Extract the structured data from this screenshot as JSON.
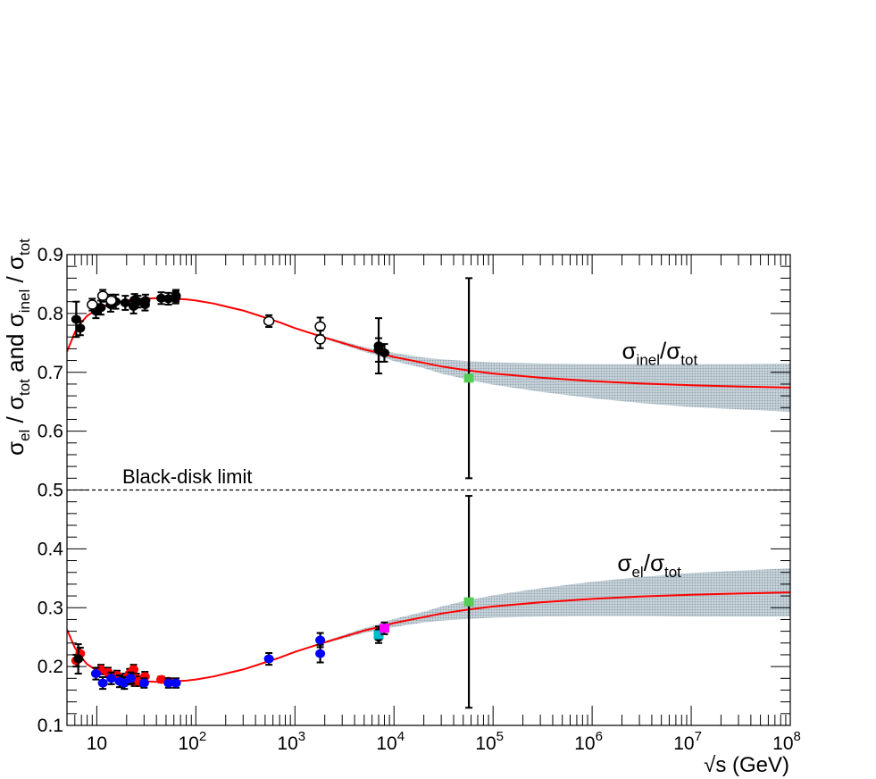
{
  "chart_data": {
    "type": "scatter",
    "title": "",
    "xlabel": {
      "root": "√s",
      "rest": " (GeV)"
    },
    "ylabel": {
      "p1": "σ",
      "p1sub": "el",
      "p2": " / ",
      "p3": "σ",
      "p3sub": "tot",
      "p4": "  and  ",
      "p5": "σ",
      "p5sub": "inel",
      "p6": " / ",
      "p7": "σ",
      "p7sub": "tot"
    },
    "x_scale": "log",
    "xlim": [
      5,
      100000000
    ],
    "ylim": [
      0.1,
      0.9
    ],
    "x_ticks": [
      {
        "value": 10,
        "base": "10",
        "exp": ""
      },
      {
        "value": 100,
        "base": "10",
        "exp": "2"
      },
      {
        "value": 1000,
        "base": "10",
        "exp": "3"
      },
      {
        "value": 10000,
        "base": "10",
        "exp": "4"
      },
      {
        "value": 100000,
        "base": "10",
        "exp": "5"
      },
      {
        "value": 1000000,
        "base": "10",
        "exp": "6"
      },
      {
        "value": 10000000,
        "base": "10",
        "exp": "7"
      },
      {
        "value": 100000000,
        "base": "10",
        "exp": "8"
      }
    ],
    "y_ticks": [
      {
        "value": 0.1,
        "label": "0.1"
      },
      {
        "value": 0.2,
        "label": "0.2"
      },
      {
        "value": 0.3,
        "label": "0.3"
      },
      {
        "value": 0.4,
        "label": "0.4"
      },
      {
        "value": 0.5,
        "label": "0.5"
      },
      {
        "value": 0.6,
        "label": "0.6"
      },
      {
        "value": 0.7,
        "label": "0.7"
      },
      {
        "value": 0.8,
        "label": "0.8"
      },
      {
        "value": 0.9,
        "label": "0.9"
      }
    ],
    "grid": false,
    "colors": {
      "fit": "#ff0000",
      "band": "#a9b9c3",
      "limit": "#000000",
      "green": "#55cc55",
      "magenta": "#ff00ff",
      "cyan": "#00bbcc",
      "blue": "#0000ff",
      "red": "#ff0000",
      "black": "#000000"
    },
    "reference_line": {
      "y": 0.5,
      "label": "Black-disk limit"
    },
    "annotations": [
      {
        "id": "inel",
        "base": "σ",
        "sub": "inel",
        "slash": "/",
        "base2": "σ",
        "sub2": "tot",
        "x": 2000000,
        "y": 0.735
      },
      {
        "id": "el",
        "base": "σ",
        "sub": "el",
        "slash": "/",
        "base2": "σ",
        "sub2": "tot",
        "x": 1800000,
        "y": 0.375
      }
    ],
    "series": [
      {
        "id": "inel_fit",
        "kind": "fit",
        "x": [
          5,
          6,
          7,
          8,
          10,
          13,
          16,
          20,
          25,
          30,
          40,
          50,
          60,
          80,
          100,
          150,
          200,
          300,
          500,
          700,
          1000,
          2000,
          3000,
          5000,
          7000,
          10000,
          20000,
          30000,
          57000,
          100000,
          300000,
          1000000,
          3000000,
          10000000,
          30000000,
          100000000
        ],
        "y": [
          0.735,
          0.768,
          0.785,
          0.796,
          0.807,
          0.815,
          0.819,
          0.822,
          0.824,
          0.825,
          0.826,
          0.826,
          0.825,
          0.824,
          0.822,
          0.817,
          0.812,
          0.805,
          0.793,
          0.785,
          0.775,
          0.759,
          0.75,
          0.739,
          0.733,
          0.726,
          0.716,
          0.71,
          0.703,
          0.698,
          0.691,
          0.685,
          0.681,
          0.678,
          0.676,
          0.674
        ],
        "band_upper": [
          0.735,
          0.768,
          0.785,
          0.796,
          0.807,
          0.815,
          0.819,
          0.822,
          0.824,
          0.825,
          0.826,
          0.826,
          0.825,
          0.824,
          0.822,
          0.817,
          0.812,
          0.805,
          0.793,
          0.786,
          0.776,
          0.761,
          0.753,
          0.743,
          0.738,
          0.733,
          0.725,
          0.722,
          0.719,
          0.717,
          0.715,
          0.714,
          0.714,
          0.714,
          0.714,
          0.715
        ],
        "band_lower": [
          0.735,
          0.768,
          0.785,
          0.796,
          0.807,
          0.815,
          0.819,
          0.822,
          0.824,
          0.825,
          0.826,
          0.826,
          0.825,
          0.824,
          0.822,
          0.817,
          0.812,
          0.805,
          0.793,
          0.784,
          0.774,
          0.757,
          0.747,
          0.735,
          0.728,
          0.719,
          0.707,
          0.698,
          0.687,
          0.679,
          0.667,
          0.656,
          0.648,
          0.641,
          0.637,
          0.633
        ]
      },
      {
        "id": "el_fit",
        "kind": "fit",
        "x": [
          5,
          6,
          7,
          8,
          10,
          13,
          16,
          20,
          25,
          30,
          40,
          50,
          60,
          80,
          100,
          150,
          200,
          300,
          500,
          700,
          1000,
          2000,
          3000,
          5000,
          7000,
          10000,
          20000,
          30000,
          57000,
          100000,
          300000,
          1000000,
          3000000,
          10000000,
          30000000,
          100000000
        ],
        "y": [
          0.263,
          0.232,
          0.215,
          0.204,
          0.193,
          0.185,
          0.181,
          0.178,
          0.176,
          0.175,
          0.174,
          0.174,
          0.175,
          0.176,
          0.178,
          0.183,
          0.188,
          0.195,
          0.207,
          0.215,
          0.225,
          0.241,
          0.25,
          0.261,
          0.267,
          0.274,
          0.284,
          0.29,
          0.297,
          0.302,
          0.309,
          0.315,
          0.319,
          0.322,
          0.324,
          0.326
        ],
        "band_upper": [
          0.263,
          0.232,
          0.215,
          0.204,
          0.193,
          0.185,
          0.181,
          0.178,
          0.176,
          0.175,
          0.174,
          0.174,
          0.175,
          0.176,
          0.178,
          0.183,
          0.188,
          0.195,
          0.207,
          0.216,
          0.226,
          0.243,
          0.253,
          0.265,
          0.272,
          0.281,
          0.293,
          0.302,
          0.313,
          0.321,
          0.333,
          0.344,
          0.352,
          0.359,
          0.363,
          0.367
        ],
        "band_lower": [
          0.263,
          0.232,
          0.215,
          0.204,
          0.193,
          0.185,
          0.181,
          0.178,
          0.176,
          0.175,
          0.174,
          0.174,
          0.175,
          0.176,
          0.178,
          0.183,
          0.188,
          0.195,
          0.207,
          0.214,
          0.224,
          0.239,
          0.247,
          0.257,
          0.262,
          0.267,
          0.275,
          0.278,
          0.281,
          0.283,
          0.285,
          0.286,
          0.286,
          0.285,
          0.285,
          0.285
        ]
      },
      {
        "id": "inel_pp_filled",
        "kind": "points",
        "marker": "circle",
        "filled": true,
        "color": "black",
        "x": [
          6.2,
          6.8,
          9.8,
          11.0,
          13.8,
          15.5,
          19.4,
          23.5,
          24.0,
          26.0,
          30.7,
          31.0,
          44.7,
          52.8,
          62.5,
          63.0,
          7000,
          7000,
          8000
        ],
        "y": [
          0.79,
          0.775,
          0.804,
          0.81,
          0.815,
          0.82,
          0.818,
          0.812,
          0.823,
          0.82,
          0.815,
          0.822,
          0.826,
          0.825,
          0.827,
          0.83,
          0.745,
          0.738,
          0.733
        ],
        "err": [
          0.03,
          0.012,
          0.012,
          0.012,
          0.012,
          0.012,
          0.012,
          0.012,
          0.01,
          0.01,
          0.01,
          0.01,
          0.01,
          0.01,
          0.01,
          0.01,
          0.047,
          0.02,
          0.015
        ]
      },
      {
        "id": "inel_open",
        "kind": "points",
        "marker": "circle",
        "filled": false,
        "color": "black",
        "x": [
          9.0,
          11.5,
          14.0,
          546,
          1800,
          1800
        ],
        "y": [
          0.815,
          0.83,
          0.822,
          0.787,
          0.778,
          0.756
        ],
        "err": [
          0.01,
          0.01,
          0.01,
          0.01,
          0.015,
          0.015
        ]
      },
      {
        "id": "inel_auger",
        "kind": "points",
        "marker": "square",
        "filled": true,
        "color": "green",
        "x": [
          57000
        ],
        "y": [
          0.69
        ],
        "err": [
          0.17
        ]
      },
      {
        "id": "el_pp",
        "kind": "points",
        "marker": "circle",
        "filled": true,
        "color": "red",
        "x": [
          6.2,
          6.8,
          11.0,
          13.0,
          16.0,
          19.4,
          21.5,
          23.5,
          24.0,
          25.0,
          27.0,
          30.6,
          44.7,
          52.8
        ],
        "y": [
          0.21,
          0.222,
          0.195,
          0.19,
          0.185,
          0.18,
          0.188,
          0.195,
          0.175,
          0.18,
          0.175,
          0.183,
          0.178,
          0.175
        ],
        "err": [
          0.01,
          0.01,
          0.008,
          0.008,
          0.008,
          0.008,
          0.008,
          0.008,
          0.008,
          0.008,
          0.008,
          0.008,
          0.005,
          0.005
        ]
      },
      {
        "id": "el_ppbar",
        "kind": "points",
        "marker": "circle",
        "filled": true,
        "color": "blue",
        "x": [
          9.8,
          11.5,
          14.0,
          17.0,
          19.0,
          22.0,
          30.0,
          53.0,
          63.0,
          546,
          1800,
          1800
        ],
        "y": [
          0.188,
          0.172,
          0.18,
          0.175,
          0.172,
          0.18,
          0.172,
          0.172,
          0.172,
          0.213,
          0.222,
          0.245
        ],
        "err": [
          0.01,
          0.01,
          0.01,
          0.01,
          0.01,
          0.01,
          0.008,
          0.008,
          0.008,
          0.01,
          0.015,
          0.012
        ]
      },
      {
        "id": "el_black",
        "kind": "points",
        "marker": "circle",
        "filled": true,
        "color": "black",
        "x": [
          6.5,
          7000,
          7000
        ],
        "y": [
          0.213,
          0.258,
          0.25
        ],
        "err": [
          0.025,
          0.01,
          0.01
        ]
      },
      {
        "id": "el_cyan",
        "kind": "points",
        "marker": "square",
        "filled": true,
        "color": "cyan",
        "x": [
          7000
        ],
        "y": [
          0.254
        ],
        "err": [
          0.006
        ]
      },
      {
        "id": "el_magenta",
        "kind": "points",
        "marker": "square",
        "filled": true,
        "color": "magenta",
        "x": [
          8000
        ],
        "y": [
          0.265
        ],
        "err": [
          0.01
        ]
      },
      {
        "id": "el_auger",
        "kind": "points",
        "marker": "square",
        "filled": true,
        "color": "green",
        "x": [
          57000
        ],
        "y": [
          0.31
        ],
        "err": [
          0.18
        ]
      }
    ]
  }
}
